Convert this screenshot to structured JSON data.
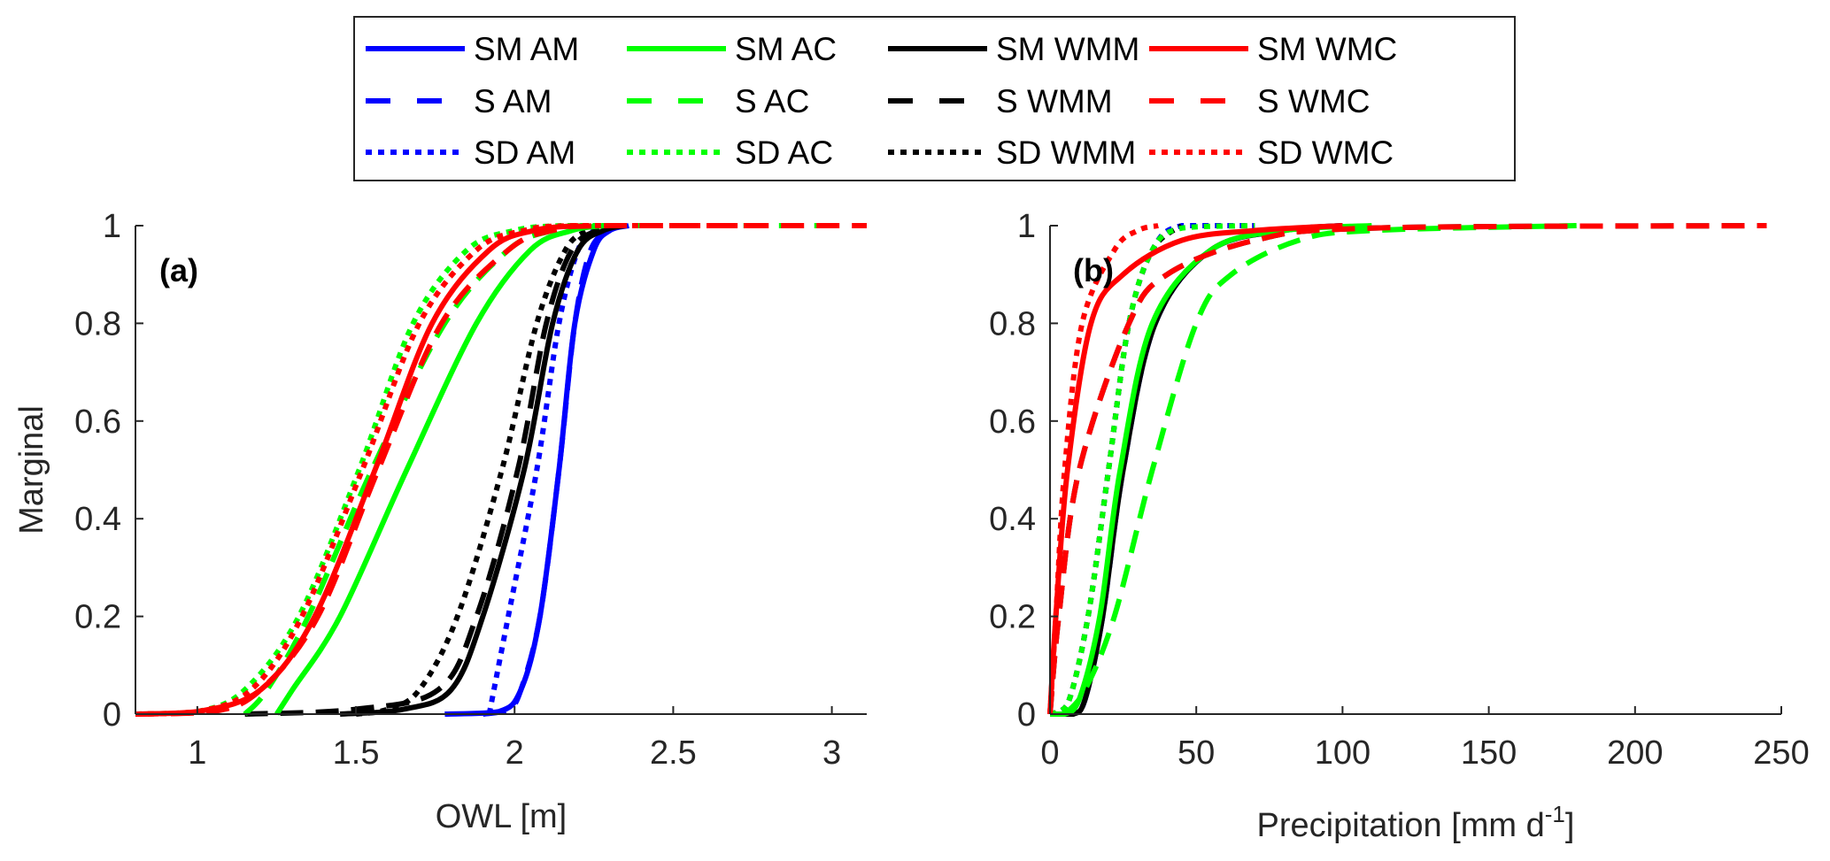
{
  "legend": {
    "entries": [
      {
        "label": "SM AM",
        "color": "#0000ff",
        "style": "solid"
      },
      {
        "label": "SM AC",
        "color": "#00ff00",
        "style": "solid"
      },
      {
        "label": "SM WMM",
        "color": "#000000",
        "style": "solid"
      },
      {
        "label": "SM WMC",
        "color": "#ff0000",
        "style": "solid"
      },
      {
        "label": "S AM",
        "color": "#0000ff",
        "style": "dashed"
      },
      {
        "label": "S AC",
        "color": "#00ff00",
        "style": "dashed"
      },
      {
        "label": "S WMM",
        "color": "#000000",
        "style": "dashed"
      },
      {
        "label": "S WMC",
        "color": "#ff0000",
        "style": "dashed"
      },
      {
        "label": "SD AM",
        "color": "#0000ff",
        "style": "dotted"
      },
      {
        "label": "SD AC",
        "color": "#00ff00",
        "style": "dotted"
      },
      {
        "label": "SD WMM",
        "color": "#000000",
        "style": "dotted"
      },
      {
        "label": "SD WMC",
        "color": "#ff0000",
        "style": "dotted"
      }
    ]
  },
  "chart_data": [
    {
      "type": "line",
      "panel_label": "(a)",
      "title": "",
      "xlabel": "OWL [m]",
      "ylabel": "Marginal",
      "xlim": [
        0.805,
        3.11
      ],
      "ylim": [
        0,
        1
      ],
      "xticks": [
        1,
        1.5,
        2,
        2.5,
        3
      ],
      "xtick_labels": [
        "1",
        "1.5",
        "2",
        "2.5",
        "3"
      ],
      "yticks": [
        0,
        0.2,
        0.4,
        0.6,
        0.8,
        1
      ],
      "ytick_labels": [
        "0",
        "0.2",
        "0.4",
        "0.6",
        "0.8",
        "1"
      ],
      "grid": false,
      "series": [
        {
          "name": "SM AM",
          "color": "#0000ff",
          "style": "solid",
          "x": [
            1.78,
            1.95,
            2.02,
            2.08,
            2.14,
            2.19,
            2.25,
            2.3,
            2.36
          ],
          "y": [
            0,
            0.005,
            0.05,
            0.2,
            0.5,
            0.8,
            0.95,
            0.99,
            1
          ]
        },
        {
          "name": "S AM",
          "color": "#0000ff",
          "style": "dashed",
          "x": [
            1.9,
            1.98,
            2.02,
            2.08,
            2.14,
            2.19,
            2.24,
            2.3,
            2.34
          ],
          "y": [
            0,
            0.01,
            0.05,
            0.2,
            0.5,
            0.8,
            0.95,
            0.99,
            1
          ]
        },
        {
          "name": "SD AM",
          "color": "#0000ff",
          "style": "dotted",
          "x": [
            1.92,
            1.98,
            2.07,
            2.14,
            2.2,
            2.25,
            2.28
          ],
          "y": [
            0,
            0.2,
            0.5,
            0.8,
            0.95,
            0.99,
            1
          ]
        },
        {
          "name": "SM WMM",
          "color": "#000000",
          "style": "solid",
          "x": [
            1.45,
            1.65,
            1.8,
            1.9,
            2.03,
            2.12,
            2.2,
            2.28,
            2.35
          ],
          "y": [
            0,
            0.01,
            0.05,
            0.2,
            0.5,
            0.8,
            0.95,
            0.99,
            1
          ]
        },
        {
          "name": "S WMM",
          "color": "#000000",
          "style": "dashed",
          "x": [
            1.15,
            1.5,
            1.76,
            1.88,
            2.01,
            2.1,
            2.18,
            2.26,
            2.32
          ],
          "y": [
            0,
            0.01,
            0.05,
            0.2,
            0.5,
            0.8,
            0.95,
            0.99,
            1
          ]
        },
        {
          "name": "SD WMM",
          "color": "#000000",
          "style": "dotted",
          "x": [
            1.5,
            1.6,
            1.7,
            1.82,
            1.96,
            2.07,
            2.16,
            2.23,
            2.28
          ],
          "y": [
            0,
            0.01,
            0.05,
            0.2,
            0.5,
            0.8,
            0.95,
            0.99,
            1
          ]
        },
        {
          "name": "SM AC",
          "color": "#00ff00",
          "style": "solid",
          "x": [
            1.25,
            1.3,
            1.45,
            1.66,
            1.88,
            2.05,
            2.18,
            2.28
          ],
          "y": [
            0,
            0.05,
            0.2,
            0.5,
            0.8,
            0.95,
            0.99,
            1
          ]
        },
        {
          "name": "S AC",
          "color": "#00ff00",
          "style": "dashed",
          "x": [
            1.15,
            1.22,
            1.35,
            1.55,
            1.78,
            1.98,
            2.12,
            2.25,
            3.0
          ],
          "y": [
            0,
            0.05,
            0.2,
            0.5,
            0.8,
            0.95,
            0.99,
            1,
            1
          ]
        },
        {
          "name": "SD AC",
          "color": "#00ff00",
          "style": "dotted",
          "x": [
            0.805,
            1.0,
            1.15,
            1.32,
            1.51,
            1.68,
            1.85,
            2.0,
            2.15,
            2.35
          ],
          "y": [
            0,
            0.005,
            0.05,
            0.2,
            0.5,
            0.8,
            0.95,
            0.99,
            1,
            1
          ]
        },
        {
          "name": "SM WMC",
          "color": "#ff0000",
          "style": "solid",
          "x": [
            0.805,
            1.0,
            1.2,
            1.37,
            1.56,
            1.74,
            1.92,
            2.06,
            2.2
          ],
          "y": [
            0,
            0.005,
            0.05,
            0.2,
            0.5,
            0.8,
            0.95,
            0.99,
            1
          ]
        },
        {
          "name": "S WMC",
          "color": "#ff0000",
          "style": "dashed",
          "x": [
            0.805,
            1.05,
            1.2,
            1.38,
            1.57,
            1.77,
            1.98,
            2.12,
            2.3,
            3.11
          ],
          "y": [
            0,
            0.005,
            0.05,
            0.2,
            0.5,
            0.8,
            0.95,
            0.99,
            1,
            1
          ]
        },
        {
          "name": "SD WMC",
          "color": "#ff0000",
          "style": "dotted",
          "x": [
            0.805,
            1.0,
            1.17,
            1.33,
            1.52,
            1.7,
            1.88,
            2.03,
            2.2,
            2.8
          ],
          "y": [
            0,
            0.005,
            0.05,
            0.2,
            0.5,
            0.8,
            0.95,
            0.99,
            1,
            1
          ]
        }
      ]
    },
    {
      "type": "line",
      "panel_label": "(b)",
      "title": "",
      "xlabel": "Precipitation [mm d",
      "xlabel_sup": "-1",
      "xlabel_end": "]",
      "ylabel": "",
      "xlim": [
        0,
        250
      ],
      "ylim": [
        0,
        1
      ],
      "xticks": [
        0,
        50,
        100,
        150,
        200,
        250
      ],
      "xtick_labels": [
        "0",
        "50",
        "100",
        "150",
        "200",
        "250"
      ],
      "yticks": [
        0,
        0.2,
        0.4,
        0.6,
        0.8,
        1
      ],
      "ytick_labels": [
        "0",
        "0.2",
        "0.4",
        "0.6",
        "0.8",
        "1"
      ],
      "grid": false,
      "series": [
        {
          "name": "SM AM",
          "color": "#0000ff",
          "style": "solid",
          "x": [
            0,
            8,
            12,
            18,
            25,
            36,
            55,
            80,
            100
          ],
          "y": [
            0,
            0,
            0.03,
            0.2,
            0.5,
            0.8,
            0.95,
            0.99,
            1
          ]
        },
        {
          "name": "S AM",
          "color": "#0000ff",
          "style": "dashed",
          "x": [
            0,
            8,
            12,
            18,
            25,
            36,
            55,
            80,
            100
          ],
          "y": [
            0,
            0,
            0.03,
            0.2,
            0.5,
            0.8,
            0.95,
            0.99,
            1
          ]
        },
        {
          "name": "SD AM",
          "color": "#0000ff",
          "style": "dotted",
          "x": [
            0,
            6,
            13,
            20,
            27,
            35,
            45,
            70
          ],
          "y": [
            0,
            0.02,
            0.2,
            0.5,
            0.8,
            0.95,
            1,
            1
          ]
        },
        {
          "name": "SM WMM",
          "color": "#000000",
          "style": "solid",
          "x": [
            0,
            8,
            12,
            18,
            25,
            36,
            55,
            80,
            100
          ],
          "y": [
            0,
            0,
            0.03,
            0.2,
            0.5,
            0.8,
            0.95,
            0.99,
            1
          ]
        },
        {
          "name": "S WMM",
          "color": "#000000",
          "style": "dashed",
          "x": [
            0,
            3,
            10,
            27,
            40,
            70,
            110,
            245
          ],
          "y": [
            0,
            0.2,
            0.5,
            0.8,
            0.9,
            0.97,
            0.995,
            1
          ]
        },
        {
          "name": "SD WMM",
          "color": "#000000",
          "style": "dotted",
          "x": [
            0,
            6,
            13,
            20,
            27,
            35,
            45
          ],
          "y": [
            0,
            0.02,
            0.2,
            0.5,
            0.8,
            0.95,
            1
          ]
        },
        {
          "name": "SM AC",
          "color": "#00ff00",
          "style": "solid",
          "x": [
            0,
            5,
            10,
            17,
            24,
            35,
            55,
            80,
            110
          ],
          "y": [
            0,
            0,
            0.03,
            0.2,
            0.5,
            0.8,
            0.95,
            0.99,
            1
          ]
        },
        {
          "name": "S AC",
          "color": "#00ff00",
          "style": "dashed",
          "x": [
            5,
            12,
            22,
            35,
            50,
            62,
            85,
            110,
            180
          ],
          "y": [
            0,
            0.05,
            0.2,
            0.5,
            0.8,
            0.9,
            0.97,
            0.99,
            1
          ]
        },
        {
          "name": "SD AC",
          "color": "#00ff00",
          "style": "dotted",
          "x": [
            0,
            6,
            13,
            20,
            27,
            35,
            45,
            70
          ],
          "y": [
            0,
            0.02,
            0.2,
            0.5,
            0.8,
            0.95,
            0.995,
            1
          ]
        },
        {
          "name": "SM WMC",
          "color": "#ff0000",
          "style": "solid",
          "x": [
            0,
            2,
            6,
            14,
            25,
            45,
            70,
            100
          ],
          "y": [
            0,
            0.2,
            0.5,
            0.8,
            0.9,
            0.97,
            0.99,
            1
          ]
        },
        {
          "name": "S WMC",
          "color": "#ff0000",
          "style": "dashed",
          "x": [
            0,
            3,
            10,
            27,
            40,
            70,
            110,
            245
          ],
          "y": [
            0,
            0.2,
            0.5,
            0.8,
            0.9,
            0.97,
            0.995,
            1
          ]
        },
        {
          "name": "SD WMC",
          "color": "#ff0000",
          "style": "dotted",
          "x": [
            0,
            2,
            5,
            11,
            22,
            30,
            37
          ],
          "y": [
            0,
            0.2,
            0.5,
            0.8,
            0.95,
            0.99,
            1
          ]
        }
      ]
    }
  ]
}
